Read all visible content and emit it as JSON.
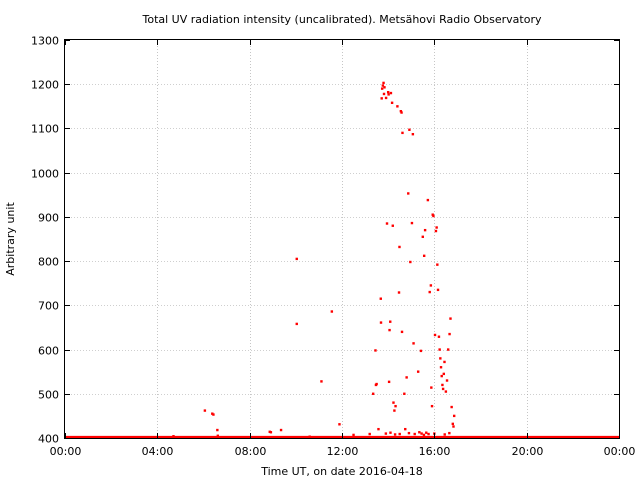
{
  "chart_data": {
    "type": "scatter",
    "title": "Total UV radiation intensity (uncalibrated). Metsähovi Radio Observatory",
    "xlabel": "Time UT, on date 2016-04-18",
    "ylabel": "Arbitrary unit",
    "xlim": [
      0,
      24
    ],
    "ylim": [
      400,
      1300
    ],
    "x_ticks": [
      {
        "value": 0,
        "label": "00:00"
      },
      {
        "value": 4,
        "label": "04:00"
      },
      {
        "value": 8,
        "label": "08:00"
      },
      {
        "value": 12,
        "label": "12:00"
      },
      {
        "value": 16,
        "label": "16:00"
      },
      {
        "value": 20,
        "label": "20:00"
      },
      {
        "value": 24,
        "label": "00:00"
      }
    ],
    "y_ticks": [
      {
        "value": 400,
        "label": "400"
      },
      {
        "value": 500,
        "label": "500"
      },
      {
        "value": 600,
        "label": "600"
      },
      {
        "value": 700,
        "label": "700"
      },
      {
        "value": 800,
        "label": "800"
      },
      {
        "value": 900,
        "label": "900"
      },
      {
        "value": 1000,
        "label": "1000"
      },
      {
        "value": 1100,
        "label": "1100"
      },
      {
        "value": 1200,
        "label": "1200"
      },
      {
        "value": 1300,
        "label": "1300"
      }
    ],
    "grid": true,
    "series_color": "#ff0000",
    "baseline": {
      "value": 400,
      "x_range": [
        0,
        24
      ]
    },
    "points": [
      [
        6.06,
        462
      ],
      [
        6.38,
        455
      ],
      [
        6.43,
        453
      ],
      [
        6.6,
        418
      ],
      [
        6.62,
        405
      ],
      [
        8.87,
        414
      ],
      [
        8.92,
        413
      ],
      [
        9.36,
        418
      ],
      [
        10.04,
        805
      ],
      [
        10.04,
        658
      ],
      [
        11.11,
        528
      ],
      [
        11.56,
        686
      ],
      [
        11.89,
        431
      ],
      [
        13.35,
        500
      ],
      [
        13.45,
        598
      ],
      [
        13.47,
        520
      ],
      [
        13.5,
        522
      ],
      [
        13.58,
        420
      ],
      [
        13.68,
        715
      ],
      [
        13.69,
        661
      ],
      [
        13.72,
        1168
      ],
      [
        13.74,
        1190
      ],
      [
        13.77,
        1197
      ],
      [
        13.8,
        1203
      ],
      [
        13.82,
        1178
      ],
      [
        13.84,
        1193
      ],
      [
        13.91,
        1169
      ],
      [
        13.95,
        885
      ],
      [
        14.0,
        1182
      ],
      [
        14.02,
        1177
      ],
      [
        14.04,
        527
      ],
      [
        14.06,
        644
      ],
      [
        14.09,
        663
      ],
      [
        14.12,
        1180
      ],
      [
        14.17,
        1158
      ],
      [
        14.2,
        880
      ],
      [
        14.23,
        480
      ],
      [
        14.27,
        462
      ],
      [
        14.32,
        472
      ],
      [
        14.4,
        1150
      ],
      [
        14.47,
        729
      ],
      [
        14.49,
        832
      ],
      [
        14.55,
        1139
      ],
      [
        14.58,
        1136
      ],
      [
        14.62,
        1090
      ],
      [
        14.6,
        640
      ],
      [
        14.7,
        500
      ],
      [
        14.74,
        420
      ],
      [
        14.8,
        537
      ],
      [
        14.87,
        953
      ],
      [
        14.92,
        1097
      ],
      [
        14.96,
        798
      ],
      [
        15.03,
        886
      ],
      [
        15.07,
        1087
      ],
      [
        15.1,
        614
      ],
      [
        15.3,
        550
      ],
      [
        15.42,
        597
      ],
      [
        15.5,
        855
      ],
      [
        15.56,
        812
      ],
      [
        15.6,
        870
      ],
      [
        15.72,
        938
      ],
      [
        15.8,
        730
      ],
      [
        15.85,
        745
      ],
      [
        15.87,
        514
      ],
      [
        15.9,
        472
      ],
      [
        15.93,
        905
      ],
      [
        15.96,
        902
      ],
      [
        16.03,
        633
      ],
      [
        16.07,
        868
      ],
      [
        16.1,
        876
      ],
      [
        16.13,
        792
      ],
      [
        16.16,
        735
      ],
      [
        16.2,
        629
      ],
      [
        16.23,
        600
      ],
      [
        16.26,
        580
      ],
      [
        16.29,
        560
      ],
      [
        16.32,
        540
      ],
      [
        16.35,
        520
      ],
      [
        16.38,
        511
      ],
      [
        16.41,
        545
      ],
      [
        16.44,
        572
      ],
      [
        16.5,
        505
      ],
      [
        16.55,
        530
      ],
      [
        16.6,
        600
      ],
      [
        16.66,
        635
      ],
      [
        16.7,
        670
      ],
      [
        16.75,
        470
      ],
      [
        16.8,
        432
      ],
      [
        16.83,
        426
      ],
      [
        16.86,
        450
      ],
      [
        13.9,
        410
      ],
      [
        14.1,
        412
      ],
      [
        14.3,
        408
      ],
      [
        14.5,
        409
      ],
      [
        14.9,
        411
      ],
      [
        15.15,
        409
      ],
      [
        15.35,
        413
      ],
      [
        15.45,
        410
      ],
      [
        15.55,
        407
      ],
      [
        15.65,
        412
      ],
      [
        15.75,
        409
      ],
      [
        16.0,
        410
      ],
      [
        16.45,
        408
      ],
      [
        16.65,
        411
      ],
      [
        12.5,
        407
      ],
      [
        13.2,
        409
      ],
      [
        4.7,
        404
      ],
      [
        10.6,
        403
      ]
    ]
  }
}
